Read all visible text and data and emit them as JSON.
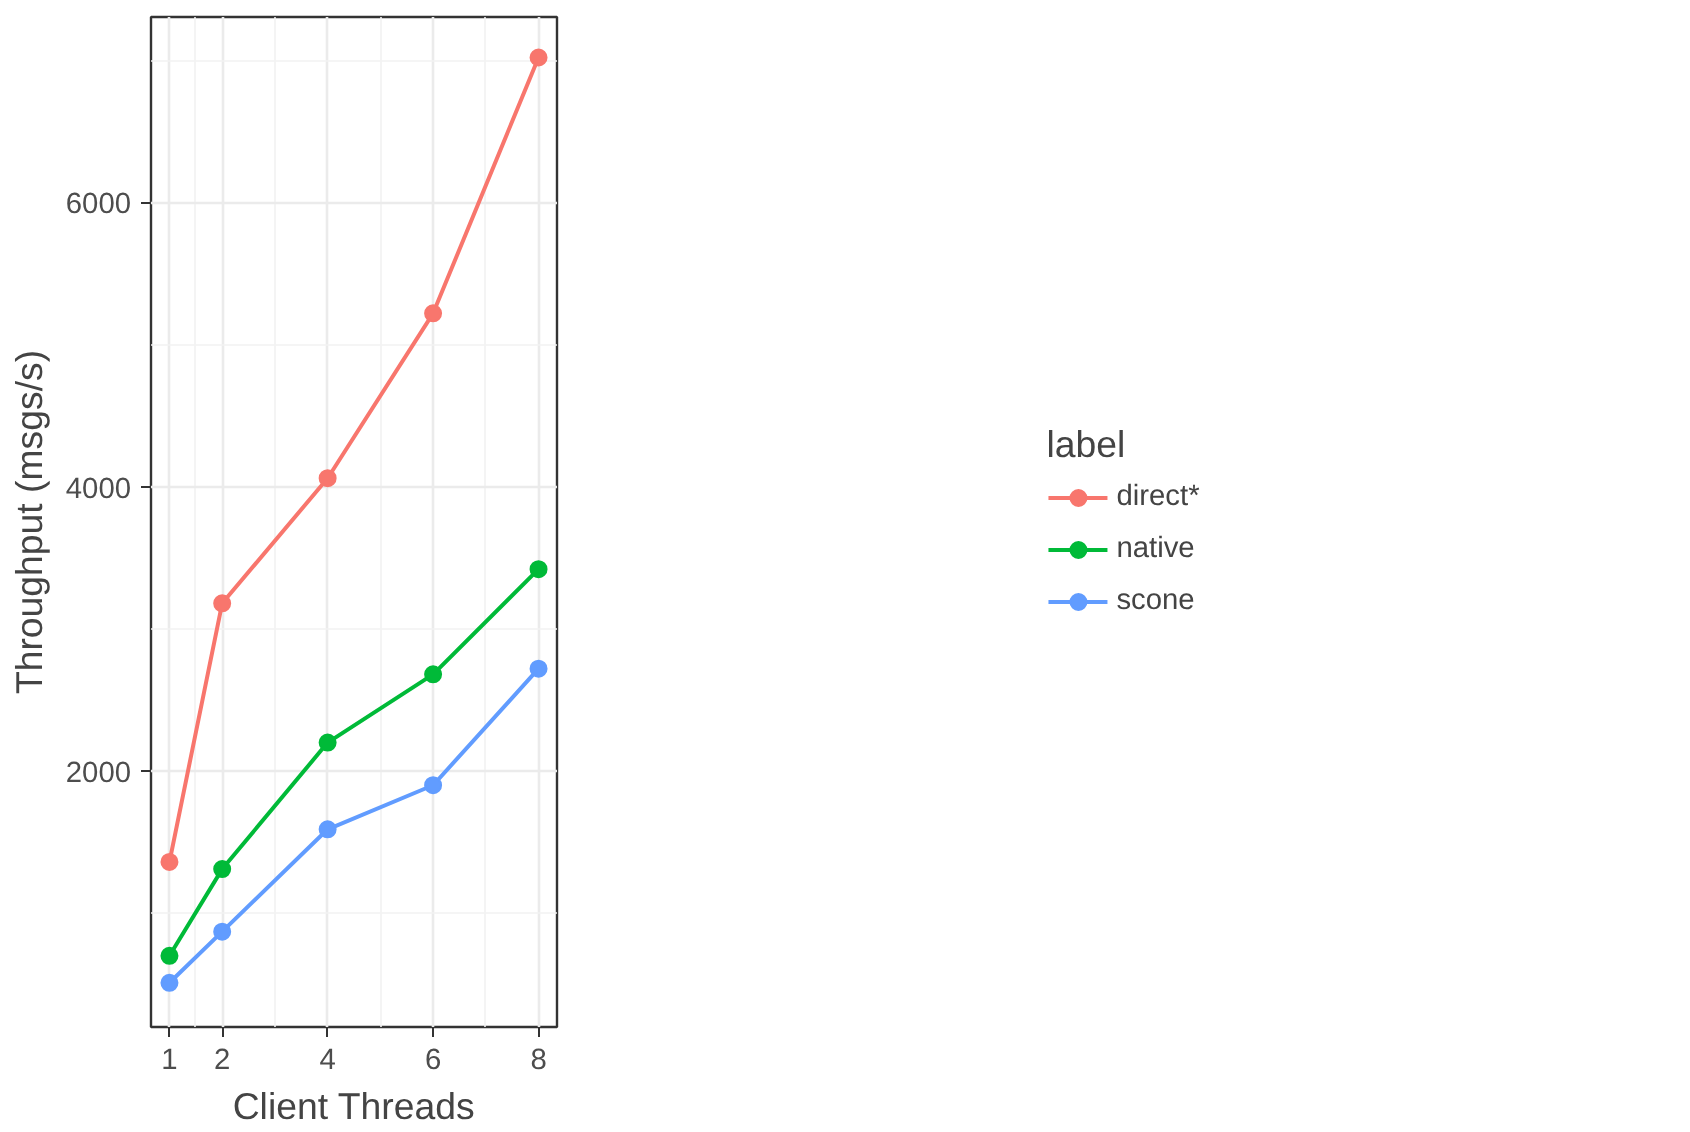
{
  "chart_data": {
    "type": "line",
    "xlabel": "Client Threads",
    "ylabel": "Throughput (msgs/s)",
    "legend_title": "label",
    "x": [
      1,
      2,
      4,
      6,
      8
    ],
    "series": [
      {
        "name": "direct*",
        "color": "#f8766d",
        "values": [
          1360,
          3180,
          4060,
          5220,
          7020
        ]
      },
      {
        "name": "native",
        "color": "#00ba38",
        "values": [
          700,
          1310,
          2200,
          2680,
          3420
        ]
      },
      {
        "name": "scone",
        "color": "#619cff",
        "values": [
          510,
          870,
          1590,
          1900,
          2720
        ]
      }
    ],
    "xlim": [
      0.65,
      8.35
    ],
    "ylim": [
      199,
      7305
    ],
    "xticks": [
      1,
      2,
      4,
      6,
      8
    ],
    "yticks": [
      2000,
      4000,
      6000
    ],
    "grid": true,
    "legend": "right",
    "marker": "circle",
    "line_style": "solid"
  }
}
